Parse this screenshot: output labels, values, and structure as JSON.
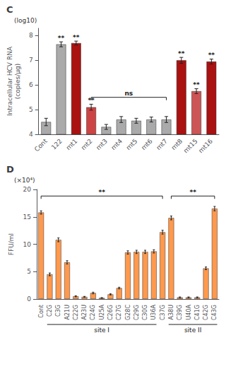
{
  "chart_data": [
    {
      "type": "bar",
      "title": "C",
      "categories": [
        "Cont",
        "122",
        "mt1",
        "mt2",
        "mt3",
        "mt4",
        "mt5",
        "mt6",
        "mt7",
        "mt8",
        "mt15",
        "mt16"
      ],
      "values": [
        4.5,
        7.65,
        7.7,
        5.1,
        4.3,
        4.6,
        4.55,
        4.6,
        4.6,
        7.0,
        5.75,
        6.95
      ],
      "errors": [
        0.15,
        0.1,
        0.08,
        0.12,
        0.1,
        0.12,
        0.1,
        0.1,
        0.12,
        0.12,
        0.1,
        0.1
      ],
      "colors": [
        "#aaaaaa",
        "#aaaaaa",
        "#aa1111",
        "#cc4444",
        "#aaaaaa",
        "#aaaaaa",
        "#aaaaaa",
        "#aaaaaa",
        "#aaaaaa",
        "#aa1111",
        "#cc5555",
        "#aa1111"
      ],
      "ylabel": "Intracellular HCV RNA\n(copies/μg)",
      "ylim": [
        4.0,
        8.3
      ],
      "yticks": [
        4,
        5,
        6,
        7,
        8
      ],
      "grid": false,
      "annotations": [
        {
          "text": "(log10)"
        },
        {
          "text": "**",
          "category": "122"
        },
        {
          "text": "**",
          "category": "mt1"
        },
        {
          "text": "**",
          "category": "mt2"
        },
        {
          "text": "**",
          "category": "mt8"
        },
        {
          "text": "**",
          "category": "mt15"
        },
        {
          "text": "**",
          "category": "mt16"
        },
        {
          "text": "ns",
          "from": "mt2",
          "to": "mt7",
          "y": 5.5
        }
      ]
    },
    {
      "type": "bar",
      "title": "D",
      "categories": [
        "Cont",
        "C2G",
        "C3G",
        "A21U",
        "C22G",
        "A23U",
        "C24G",
        "U25A",
        "C26G",
        "C27G",
        "G28C",
        "C29G",
        "C30G",
        "U36A",
        "C37G",
        "A38U",
        "C39G",
        "U40A",
        "C41G",
        "C42G",
        "C43G"
      ],
      "values": [
        15.8,
        4.5,
        10.8,
        6.7,
        0.5,
        0.4,
        1.1,
        0.2,
        0.85,
        2.0,
        8.5,
        8.6,
        8.6,
        8.7,
        12.2,
        14.8,
        0.3,
        0.3,
        0.3,
        5.6,
        16.5
      ],
      "errors": [
        0.3,
        0.25,
        0.35,
        0.3,
        0.1,
        0.08,
        0.15,
        0.06,
        0.1,
        0.15,
        0.3,
        0.3,
        0.3,
        0.3,
        0.35,
        0.35,
        0.08,
        0.08,
        0.08,
        0.25,
        0.4
      ],
      "ylabel": "FFU/ml",
      "ylim": [
        0,
        20
      ],
      "yticks": [
        0,
        5,
        10,
        15,
        20
      ],
      "grid": false,
      "annotations": [
        {
          "text": "(×10⁴)"
        },
        {
          "text": "**",
          "from": "Cont",
          "to": "C37G",
          "y": 18.8
        },
        {
          "text": "**",
          "from": "A38U",
          "to": "C43G",
          "y": 18.8
        },
        {
          "text": "site I",
          "from": "C2G",
          "to": "U36A"
        },
        {
          "text": "site II",
          "from": "A38U",
          "to": "C43G"
        }
      ]
    }
  ]
}
